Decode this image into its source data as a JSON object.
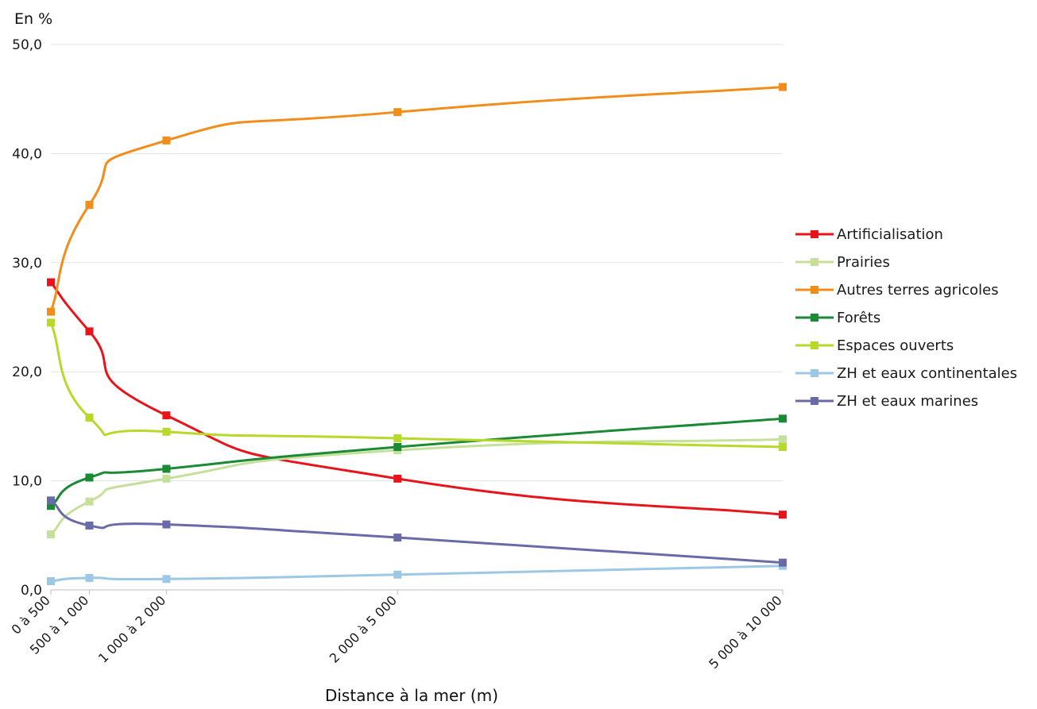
{
  "chart_data": {
    "type": "line",
    "title": "",
    "ylabel": "En %",
    "xlabel": "Distance à la mer (m)",
    "ylim": [
      0,
      50
    ],
    "yticks": [
      "0,0",
      "10,0",
      "20,0",
      "30,0",
      "40,0",
      "50,0"
    ],
    "ytick_values": [
      0,
      10,
      20,
      30,
      40,
      50
    ],
    "x_scale": "distance (m), class upper bound",
    "x_values": [
      500,
      1000,
      2000,
      5000,
      10000
    ],
    "categories": [
      "0 à 500",
      "500 à 1 000",
      "1 000 à 2 000",
      "2 000 à 5 000",
      "5 000 à 10 000"
    ],
    "grid": true,
    "smooth": true,
    "legend_position": "right",
    "series": [
      {
        "name": "Artificialisation",
        "color": "#e8141a",
        "values": [
          28.2,
          23.7,
          16.0,
          10.2,
          6.9
        ]
      },
      {
        "name": "Prairies",
        "color": "#c5e09a",
        "values": [
          5.1,
          8.1,
          10.2,
          12.8,
          13.8
        ]
      },
      {
        "name": "Autres terres agricoles",
        "color": "#f18d1b",
        "values": [
          25.5,
          35.3,
          41.2,
          43.8,
          46.1
        ]
      },
      {
        "name": "Forêts",
        "color": "#1a8a35",
        "values": [
          7.7,
          10.3,
          11.1,
          13.1,
          15.7
        ]
      },
      {
        "name": "Espaces ouverts",
        "color": "#b6d92a",
        "values": [
          24.5,
          15.8,
          14.5,
          13.9,
          13.1
        ]
      },
      {
        "name": "ZH et eaux continentales",
        "color": "#9cc8e6",
        "values": [
          0.8,
          1.1,
          1.0,
          1.4,
          2.2
        ]
      },
      {
        "name": "ZH et eaux marines",
        "color": "#6a6aa8",
        "values": [
          8.2,
          5.9,
          6.0,
          4.8,
          2.5
        ]
      }
    ]
  }
}
